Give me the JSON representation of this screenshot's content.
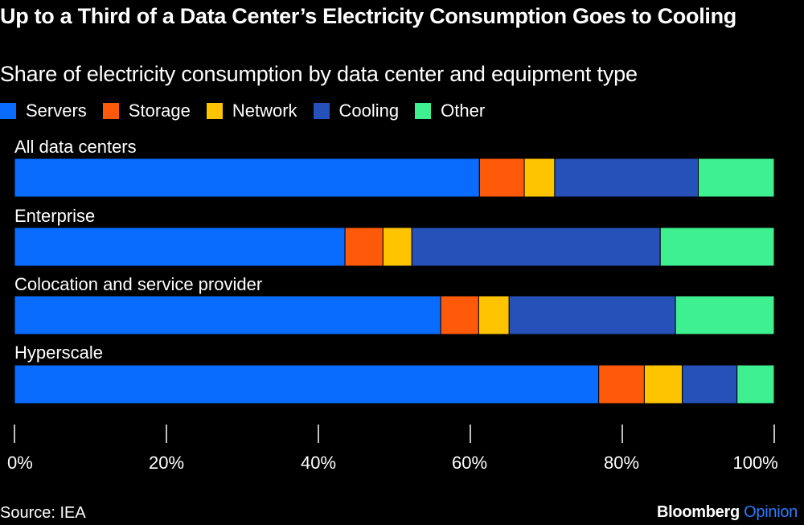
{
  "title": "Up to a Third of a Data Center’s Electricity Consumption Goes to Cooling",
  "subtitle": "Share of electricity consumption by data center and equipment type",
  "source": "Source: IEA",
  "brand": {
    "name": "Bloomberg",
    "suffix": "Opinion"
  },
  "chart_data": {
    "type": "bar",
    "orientation": "horizontal",
    "stacked": true,
    "categories": [
      "All data centers",
      "Enterprise",
      "Colocation and service provider",
      "Hyperscale"
    ],
    "series": [
      {
        "name": "Servers",
        "color": "#0a6cff",
        "values": [
          61.2,
          43.5,
          56.1,
          76.9
        ]
      },
      {
        "name": "Storage",
        "color": "#ff5a0a",
        "values": [
          5.9,
          5.0,
          5.0,
          6.0
        ]
      },
      {
        "name": "Network",
        "color": "#ffc400",
        "values": [
          4.0,
          3.8,
          4.0,
          5.0
        ]
      },
      {
        "name": "Cooling",
        "color": "#2551b8",
        "values": [
          18.9,
          32.7,
          21.9,
          7.2
        ]
      },
      {
        "name": "Other",
        "color": "#3ef08f",
        "values": [
          10.0,
          15.0,
          13.0,
          4.9
        ]
      }
    ],
    "xlim": [
      0,
      100
    ],
    "ticks": [
      "0%",
      "20%",
      "40%",
      "60%",
      "80%",
      "100%"
    ],
    "tick_values": [
      0,
      20,
      40,
      60,
      80,
      100
    ],
    "legend_position": "top-left",
    "grid": false
  }
}
